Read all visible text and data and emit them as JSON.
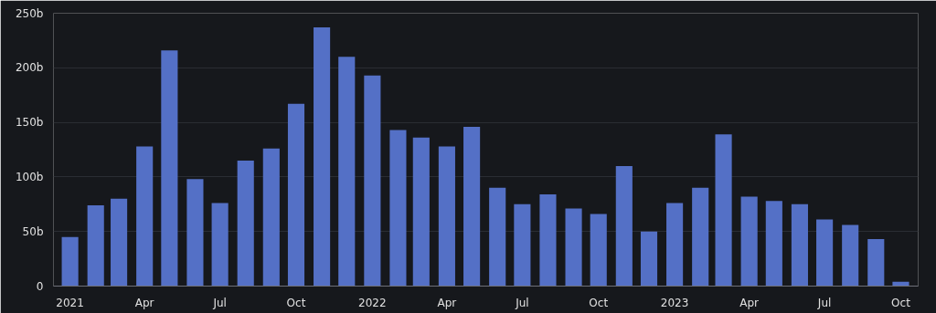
{
  "chart_data": {
    "type": "bar",
    "x": [
      "2021-01",
      "2021-02",
      "2021-03",
      "2021-04",
      "2021-05",
      "2021-06",
      "2021-07",
      "2021-08",
      "2021-09",
      "2021-10",
      "2021-11",
      "2021-12",
      "2022-01",
      "2022-02",
      "2022-03",
      "2022-04",
      "2022-05",
      "2022-06",
      "2022-07",
      "2022-08",
      "2022-09",
      "2022-10",
      "2022-11",
      "2022-12",
      "2023-01",
      "2023-02",
      "2023-03",
      "2023-04",
      "2023-05",
      "2023-06",
      "2023-07",
      "2023-08",
      "2023-09",
      "2023-10"
    ],
    "values": [
      45,
      74,
      80,
      128,
      216,
      98,
      76,
      115,
      126,
      167,
      237,
      210,
      193,
      143,
      136,
      128,
      146,
      90,
      75,
      84,
      71,
      66,
      110,
      50,
      76,
      90,
      139,
      82,
      78,
      75,
      61,
      56,
      43,
      4
    ],
    "color": "#5470c6",
    "xlim": [
      "2020-12-12",
      "2023-10-22"
    ],
    "xticks": [
      {
        "value": "2021-01-01",
        "label": "2021"
      },
      {
        "value": "2021-04-01",
        "label": "Apr"
      },
      {
        "value": "2021-07-01",
        "label": "Jul"
      },
      {
        "value": "2021-10-01",
        "label": "Oct"
      },
      {
        "value": "2022-01-01",
        "label": "2022"
      },
      {
        "value": "2022-04-01",
        "label": "Apr"
      },
      {
        "value": "2022-07-01",
        "label": "Jul"
      },
      {
        "value": "2022-10-01",
        "label": "Oct"
      },
      {
        "value": "2023-01-01",
        "label": "2023"
      },
      {
        "value": "2023-04-01",
        "label": "Apr"
      },
      {
        "value": "2023-07-01",
        "label": "Jul"
      },
      {
        "value": "2023-10-01",
        "label": "Oct"
      }
    ],
    "ylim": [
      0,
      250
    ],
    "yticks": [
      {
        "value": 0,
        "label": "0"
      },
      {
        "value": 50,
        "label": "50b"
      },
      {
        "value": 100,
        "label": "100b"
      },
      {
        "value": 150,
        "label": "150b"
      },
      {
        "value": 200,
        "label": "200b"
      },
      {
        "value": 250,
        "label": "250b"
      }
    ],
    "grid": "y"
  }
}
